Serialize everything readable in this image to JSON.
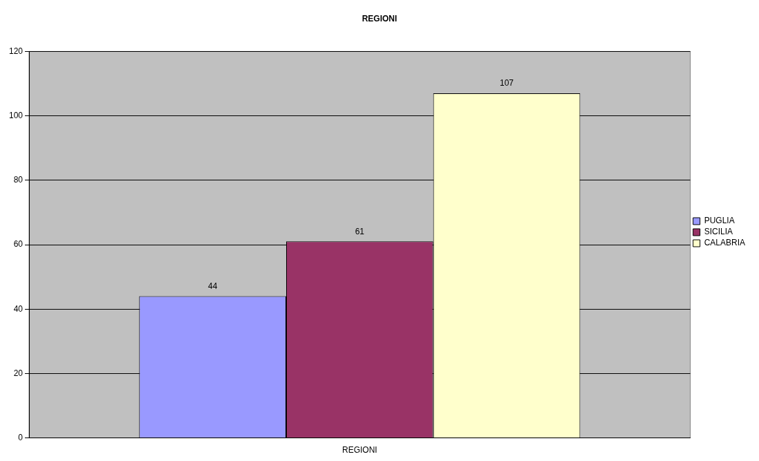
{
  "chart_data": {
    "type": "bar",
    "title": "REGIONI",
    "categories": [
      "REGIONI"
    ],
    "series": [
      {
        "name": "PUGLIA",
        "color": "#9999ff",
        "values": [
          44
        ]
      },
      {
        "name": "SICILIA",
        "color": "#993366",
        "values": [
          61
        ]
      },
      {
        "name": "CALABRIA",
        "color": "#ffffcc",
        "values": [
          107
        ]
      }
    ],
    "ylim": [
      0,
      120
    ],
    "yticks": [
      0,
      20,
      40,
      60,
      80,
      100,
      120
    ],
    "grid": "y",
    "legend": "right",
    "data_labels": true
  }
}
